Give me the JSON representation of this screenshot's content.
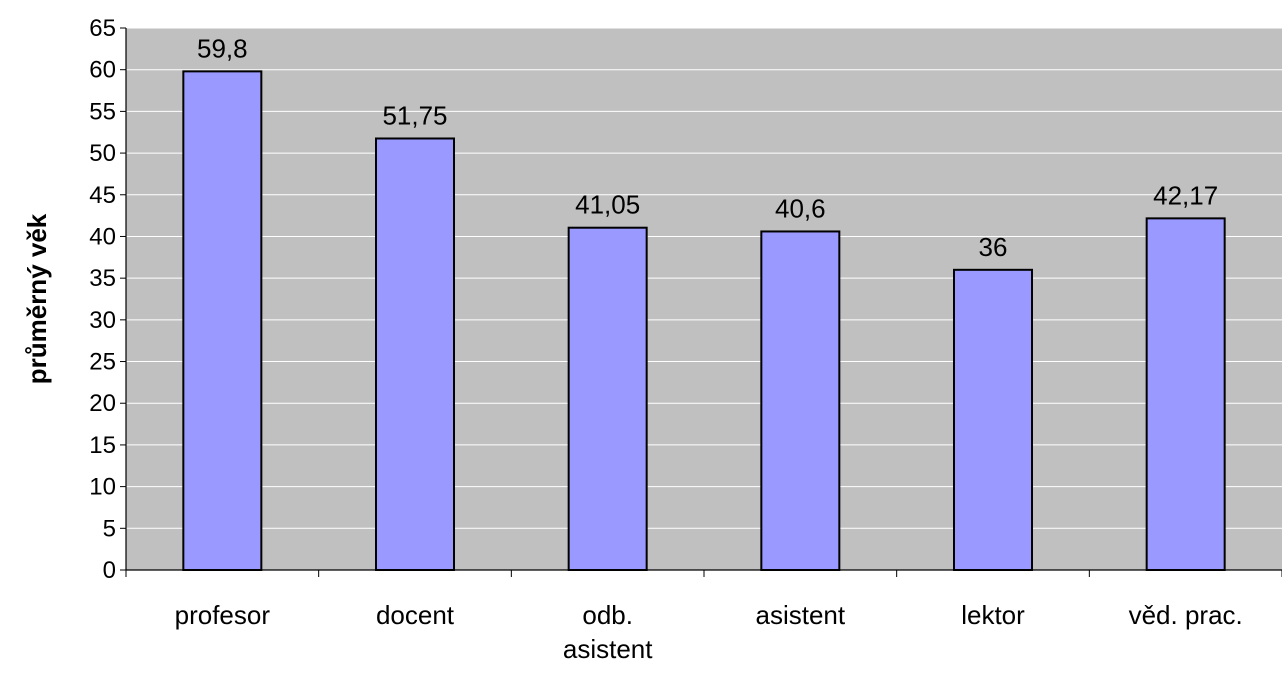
{
  "chart_data": {
    "type": "bar",
    "title": "",
    "xlabel": "",
    "ylabel": "průměrný věk",
    "categories": [
      "profesor",
      "docent",
      "odb. asistent",
      "asistent",
      "lektor",
      "věd. prac."
    ],
    "category_label_lines": [
      [
        "profesor"
      ],
      [
        "docent"
      ],
      [
        "odb.",
        "asistent"
      ],
      [
        "asistent"
      ],
      [
        "lektor"
      ],
      [
        "věd. prac."
      ]
    ],
    "values": [
      59.8,
      51.75,
      41.05,
      40.6,
      36,
      42.17
    ],
    "data_labels": [
      "59,8",
      "51,75",
      "41,05",
      "40,6",
      "36",
      "42,17"
    ],
    "ylim": [
      0,
      65
    ],
    "yticks": [
      0,
      5,
      10,
      15,
      20,
      25,
      30,
      35,
      40,
      45,
      50,
      55,
      60,
      65
    ],
    "grid": true,
    "legend": "none",
    "colors": {
      "bar_fill": "#9999FF",
      "bar_stroke": "#000000",
      "plot_background": "#C0C0C0",
      "gridline": "#FFFFFF"
    }
  }
}
